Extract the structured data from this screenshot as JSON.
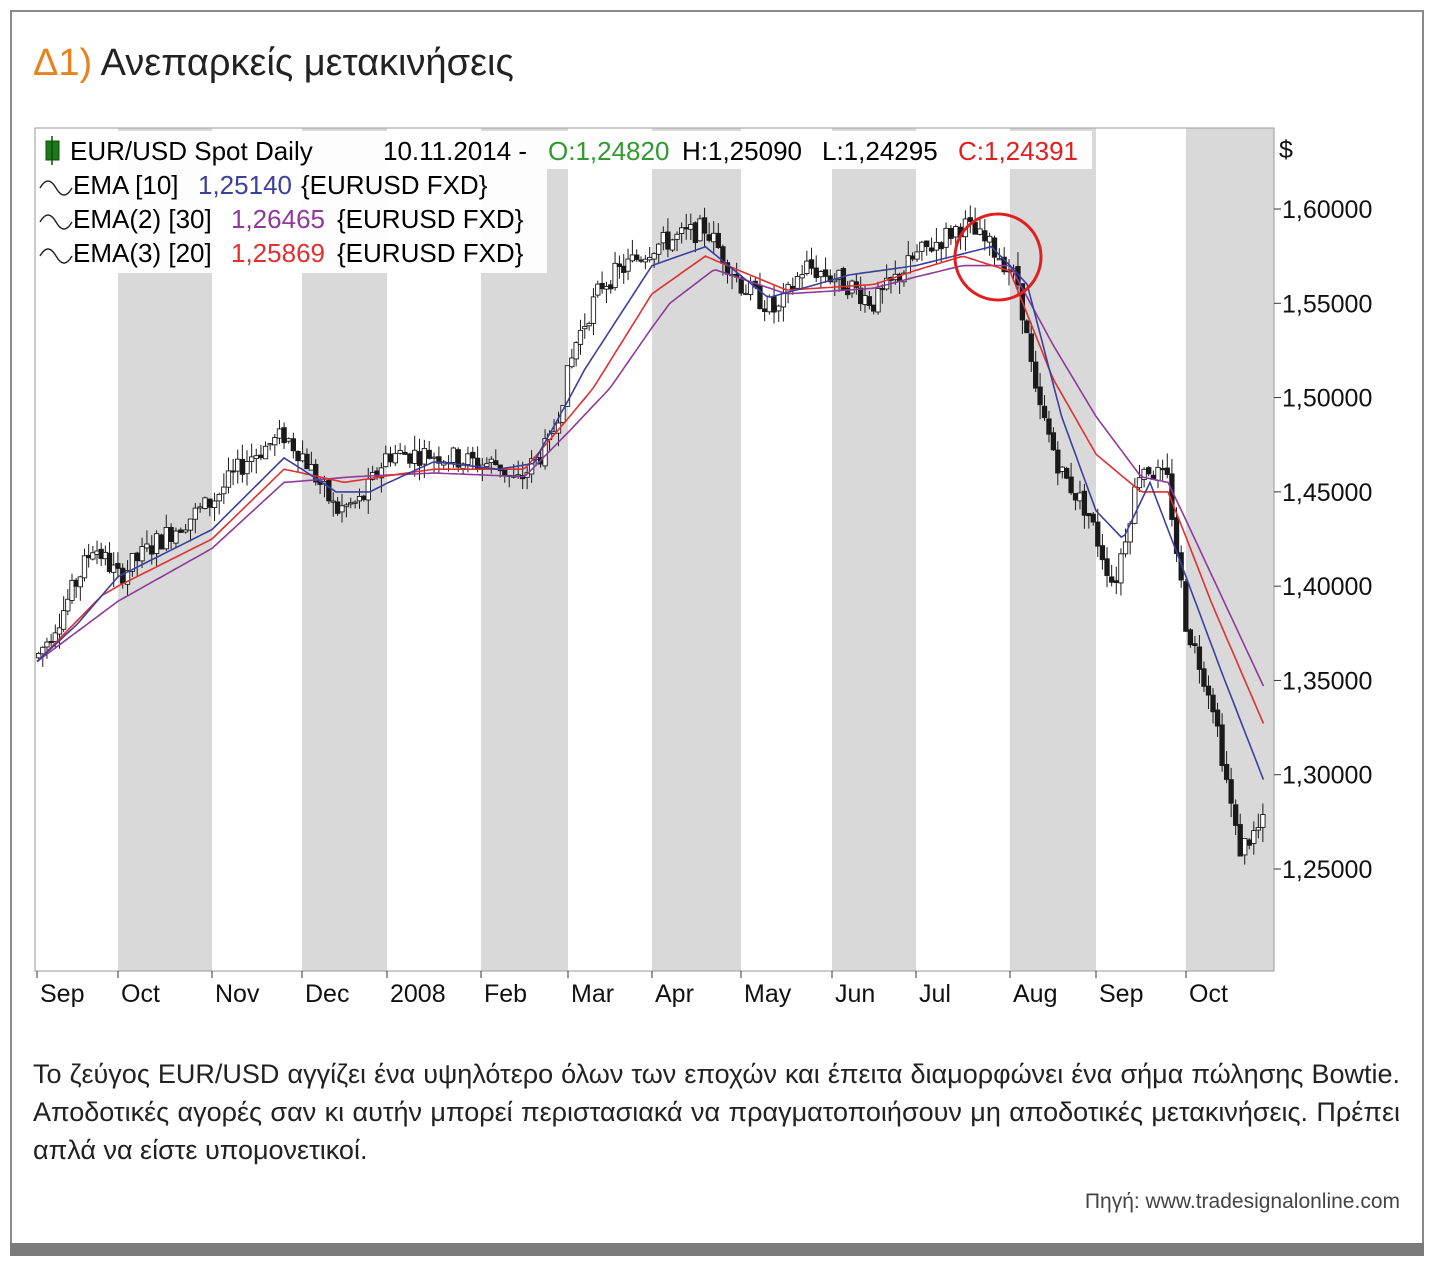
{
  "title": {
    "number": "Δ1)",
    "text": "Ανεπαρκείς μετακινήσεις"
  },
  "caption": "Το ζεύγος EUR/USD αγγίζει ένα υψηλότερο όλων των εποχών και έπειτα διαμορφώνει ένα σήμα πώλησης Bowtie. Αποδοτικές αγορές σαν κι αυτήν μπορεί περιστασιακά να πραγματοποιήσουν μη αποδοτικές μετακινήσεις. Πρέπει απλά να είστε υπομονετικοί.",
  "source": "Πηγή: www.tradesignalonline.com",
  "colors": {
    "accent": "#e8821f",
    "ema10": "#3b3f9e",
    "ema30": "#8e3a9a",
    "ema20": "#e03030",
    "ohlc_open": "#2e9b2e",
    "ohlc_close": "#e02020",
    "candle": "#1a1a1a",
    "band": "#d9d9d9",
    "circle": "#e02020"
  },
  "legend": {
    "symbol": "EUR/USD Spot Daily",
    "date": "10.11.2014 -",
    "open": "O:1,24820",
    "high": "H:1,25090",
    "low": "L:1,24295",
    "close": "C:1,24391",
    "ema10_label": "EMA [10]",
    "ema10_value": "1,25140",
    "ema10_suffix": "{EURUSD FXD}",
    "ema30_label": "EMA(2) [30]",
    "ema30_value": "1,26465",
    "ema30_suffix": "{EURUSD FXD}",
    "ema20_label": "EMA(3) [20]",
    "ema20_value": "1,25869",
    "ema20_suffix": "{EURUSD FXD}"
  },
  "chart_data": {
    "type": "candlestick",
    "currency_label": "$",
    "y_ticks": [
      "1,60000",
      "1,55000",
      "1,50000",
      "1,45000",
      "1,40000",
      "1,35000",
      "1,30000",
      "1,25000"
    ],
    "ylim": [
      1.2,
      1.63
    ],
    "x_months": [
      "Sep",
      "Oct",
      "Nov",
      "Dec",
      "2008",
      "Feb",
      "Mar",
      "Apr",
      "May",
      "Jun",
      "Jul",
      "Aug",
      "Sep",
      "Oct"
    ],
    "grid": "alternating shaded month bands",
    "annotation": "red circle around July top",
    "price_path": [
      [
        0,
        1.362
      ],
      [
        0.3,
        1.385
      ],
      [
        0.7,
        1.422
      ],
      [
        1.0,
        1.405
      ],
      [
        1.4,
        1.423
      ],
      [
        2.0,
        1.445
      ],
      [
        2.4,
        1.468
      ],
      [
        2.8,
        1.48
      ],
      [
        3.0,
        1.47
      ],
      [
        3.4,
        1.44
      ],
      [
        3.7,
        1.445
      ],
      [
        4.0,
        1.47
      ],
      [
        4.5,
        1.47
      ],
      [
        5.0,
        1.465
      ],
      [
        5.2,
        1.465
      ],
      [
        5.4,
        1.454
      ],
      [
        5.8,
        1.476
      ],
      [
        6.1,
        1.53
      ],
      [
        6.4,
        1.56
      ],
      [
        7.0,
        1.58
      ],
      [
        7.6,
        1.59
      ],
      [
        8.0,
        1.56
      ],
      [
        8.4,
        1.545
      ],
      [
        8.7,
        1.57
      ],
      [
        9.2,
        1.56
      ],
      [
        9.5,
        1.55
      ],
      [
        10.0,
        1.575
      ],
      [
        10.5,
        1.592
      ],
      [
        10.9,
        1.575
      ],
      [
        11.1,
        1.56
      ],
      [
        11.3,
        1.5
      ],
      [
        11.6,
        1.46
      ],
      [
        11.9,
        1.44
      ],
      [
        12.2,
        1.4
      ],
      [
        12.5,
        1.465
      ],
      [
        12.8,
        1.455
      ],
      [
        13.0,
        1.38
      ],
      [
        13.3,
        1.34
      ],
      [
        13.6,
        1.26
      ],
      [
        13.9,
        1.275
      ]
    ],
    "ema10_path": [
      [
        0,
        1.36
      ],
      [
        0.5,
        1.38
      ],
      [
        1.0,
        1.405
      ],
      [
        2.0,
        1.43
      ],
      [
        2.8,
        1.468
      ],
      [
        3.4,
        1.45
      ],
      [
        3.8,
        1.45
      ],
      [
        4.5,
        1.466
      ],
      [
        5.2,
        1.462
      ],
      [
        5.6,
        1.465
      ],
      [
        6.2,
        1.515
      ],
      [
        7.0,
        1.57
      ],
      [
        7.6,
        1.58
      ],
      [
        8.3,
        1.553
      ],
      [
        9.2,
        1.565
      ],
      [
        10.0,
        1.57
      ],
      [
        10.8,
        1.58
      ],
      [
        11.2,
        1.56
      ],
      [
        11.6,
        1.49
      ],
      [
        12.0,
        1.44
      ],
      [
        12.3,
        1.425
      ],
      [
        12.6,
        1.455
      ],
      [
        13.0,
        1.405
      ],
      [
        13.4,
        1.355
      ],
      [
        13.9,
        1.295
      ]
    ],
    "ema20_path": [
      [
        0,
        1.36
      ],
      [
        0.8,
        1.395
      ],
      [
        2.0,
        1.425
      ],
      [
        2.8,
        1.462
      ],
      [
        3.5,
        1.455
      ],
      [
        4.5,
        1.462
      ],
      [
        5.5,
        1.462
      ],
      [
        6.3,
        1.505
      ],
      [
        7.0,
        1.555
      ],
      [
        7.6,
        1.575
      ],
      [
        8.5,
        1.557
      ],
      [
        9.5,
        1.56
      ],
      [
        10.5,
        1.575
      ],
      [
        11.0,
        1.567
      ],
      [
        11.5,
        1.51
      ],
      [
        12.0,
        1.47
      ],
      [
        12.5,
        1.45
      ],
      [
        12.8,
        1.45
      ],
      [
        13.3,
        1.39
      ],
      [
        13.9,
        1.325
      ]
    ],
    "ema30_path": [
      [
        0,
        1.36
      ],
      [
        1.0,
        1.392
      ],
      [
        2.0,
        1.42
      ],
      [
        2.8,
        1.455
      ],
      [
        3.6,
        1.458
      ],
      [
        4.5,
        1.46
      ],
      [
        5.5,
        1.458
      ],
      [
        6.5,
        1.505
      ],
      [
        7.2,
        1.55
      ],
      [
        7.7,
        1.568
      ],
      [
        8.5,
        1.555
      ],
      [
        9.5,
        1.558
      ],
      [
        10.5,
        1.57
      ],
      [
        11.0,
        1.57
      ],
      [
        11.5,
        1.528
      ],
      [
        12.0,
        1.49
      ],
      [
        12.5,
        1.458
      ],
      [
        12.8,
        1.455
      ],
      [
        13.3,
        1.405
      ],
      [
        13.9,
        1.345
      ]
    ]
  }
}
